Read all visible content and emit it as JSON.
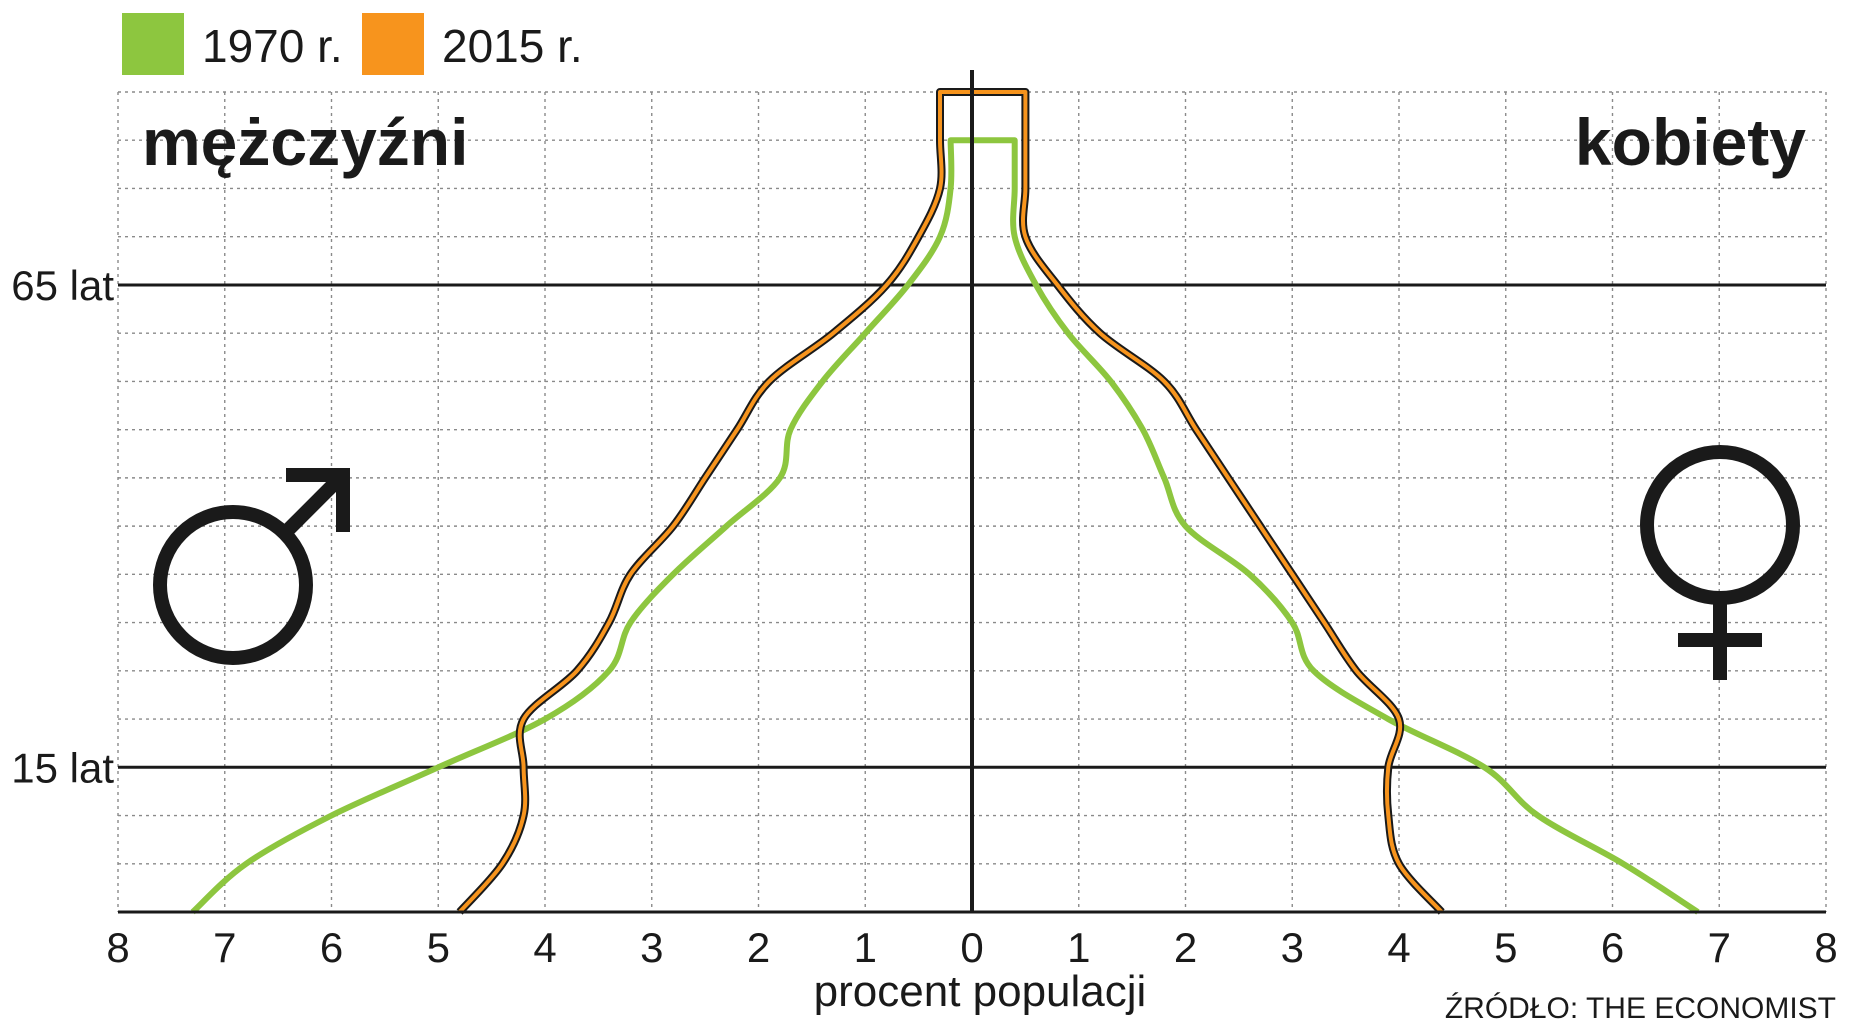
{
  "chart_data": {
    "type": "area",
    "xlabel": "procent populacji",
    "left_label": "mężczyźni",
    "right_label": "kobiety",
    "source": "ŹRÓDŁO: THE ECONOMIST",
    "x_ticks": [
      "8",
      "7",
      "6",
      "5",
      "4",
      "3",
      "2",
      "1",
      "0",
      "1",
      "2",
      "3",
      "4",
      "5",
      "6",
      "7",
      "8"
    ],
    "xlim": [
      -8,
      8
    ],
    "ylim": [
      0,
      85
    ],
    "y_ticks": [
      {
        "value": 15,
        "label": "15 lat"
      },
      {
        "value": 65,
        "label": "65 lat"
      }
    ],
    "grid": true,
    "legend_position": "top-left",
    "series": [
      {
        "name": "1970 r.",
        "color": "#8dc63f",
        "age": [
          0,
          5,
          10,
          15,
          20,
          25,
          30,
          35,
          40,
          45,
          50,
          55,
          60,
          65,
          70,
          75,
          80
        ],
        "male": [
          7.3,
          6.8,
          6.0,
          5.0,
          4.0,
          3.4,
          3.2,
          2.8,
          2.3,
          1.8,
          1.7,
          1.4,
          1.0,
          0.6,
          0.3,
          0.2,
          0.2
        ],
        "female": [
          6.8,
          6.1,
          5.3,
          4.8,
          3.9,
          3.2,
          3.0,
          2.6,
          2.0,
          1.8,
          1.6,
          1.3,
          0.9,
          0.6,
          0.4,
          0.4,
          0.4
        ]
      },
      {
        "name": "2015 r.",
        "color": "#f7941d",
        "age": [
          0,
          5,
          10,
          15,
          20,
          25,
          30,
          35,
          40,
          45,
          50,
          55,
          60,
          65,
          70,
          75,
          80,
          85
        ],
        "male": [
          4.8,
          4.4,
          4.2,
          4.2,
          4.2,
          3.7,
          3.4,
          3.2,
          2.8,
          2.5,
          2.2,
          1.9,
          1.3,
          0.8,
          0.5,
          0.3,
          0.3,
          0.3
        ],
        "female": [
          4.4,
          4.0,
          3.9,
          3.9,
          4.0,
          3.6,
          3.3,
          3.0,
          2.7,
          2.4,
          2.1,
          1.8,
          1.2,
          0.8,
          0.5,
          0.5,
          0.5,
          0.5
        ]
      }
    ]
  }
}
